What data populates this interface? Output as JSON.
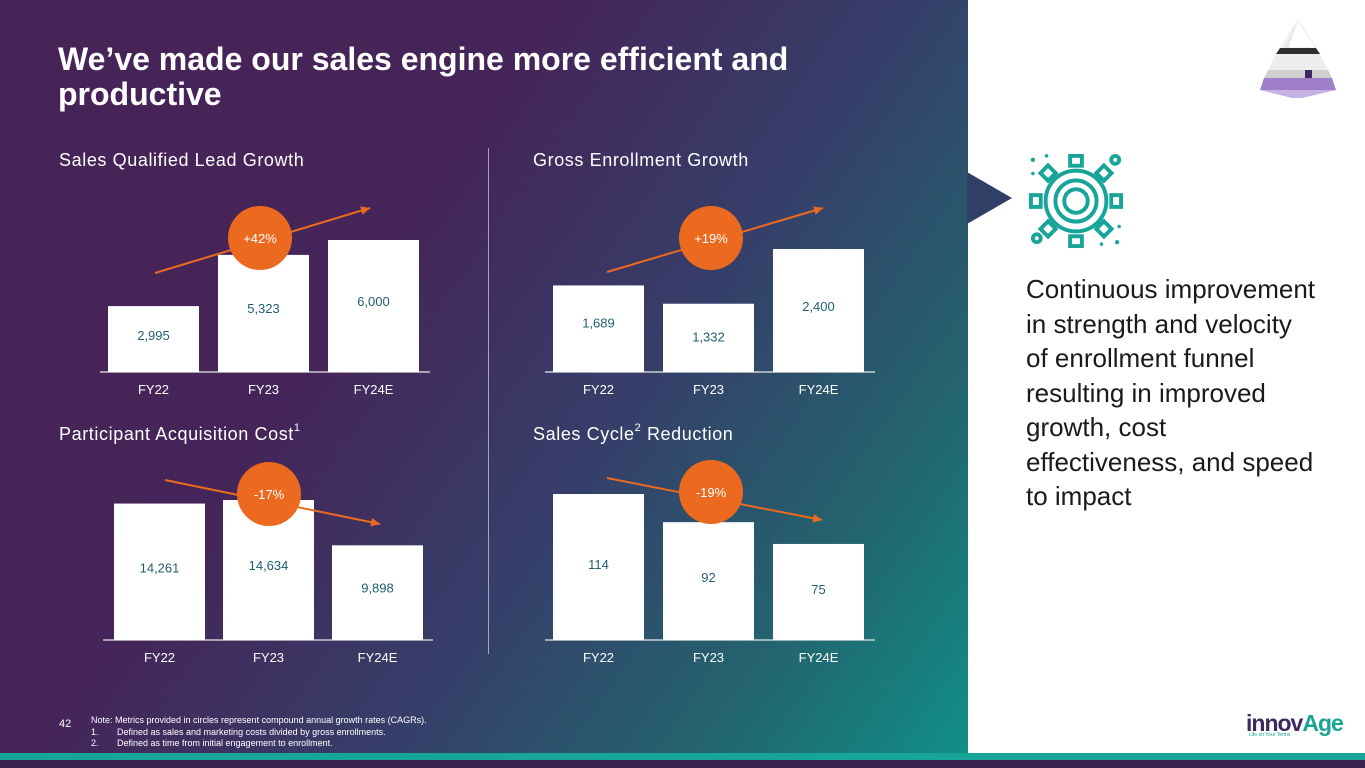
{
  "title": "We’ve made our sales engine more efficient and productive",
  "colors": {
    "badge": "#ec6a1f",
    "bar": "#ffffff",
    "bar_label": "#1f5f70",
    "accent_teal": "#17a59a",
    "brand_purple": "#3c2a5e"
  },
  "chart_data": [
    {
      "type": "bar",
      "title": "Sales Qualified Lead Growth",
      "categories": [
        "FY22",
        "FY23",
        "FY24E"
      ],
      "values": [
        2995,
        5323,
        6000
      ],
      "value_labels": [
        "2,995",
        "5,323",
        "6,000"
      ],
      "badge": "+42%",
      "trend": "up",
      "ylim": [
        0,
        6000
      ]
    },
    {
      "type": "bar",
      "title": "Gross Enrollment Growth",
      "categories": [
        "FY22",
        "FY23",
        "FY24E"
      ],
      "values": [
        1689,
        1332,
        2400
      ],
      "value_labels": [
        "1,689",
        "1,332",
        "2,400"
      ],
      "badge": "+19%",
      "trend": "up",
      "ylim": [
        0,
        2400
      ]
    },
    {
      "type": "bar",
      "title": "Participant Acquisition Cost",
      "title_superscript": "1",
      "categories": [
        "FY22",
        "FY23",
        "FY24E"
      ],
      "values": [
        14261,
        14634,
        9898
      ],
      "value_labels": [
        "14,261",
        "14,634",
        "9,898"
      ],
      "badge": "-17%",
      "trend": "down",
      "ylim": [
        0,
        14634
      ]
    },
    {
      "type": "bar",
      "title_prefix": "Sales Cycle",
      "title_superscript": "2",
      "title_suffix": " Reduction",
      "categories": [
        "FY22",
        "FY23",
        "FY24E"
      ],
      "values": [
        114,
        92,
        75
      ],
      "value_labels": [
        "114",
        "92",
        "75"
      ],
      "badge": "-19%",
      "trend": "down",
      "ylim": [
        0,
        114
      ]
    }
  ],
  "callout": {
    "icon": "gear-icon",
    "text": "Continuous improvement in strength and velocity of enrollment funnel resulting in improved growth, cost effectiveness, and speed to impact"
  },
  "footer": {
    "page_number": "42",
    "note": "Note: Metrics provided in circles represent compound annual growth rates (CAGRs).",
    "footnotes": [
      {
        "num": "1.",
        "text": "Defined as sales and marketing costs divided by gross enrollments."
      },
      {
        "num": "2.",
        "text": "Defined as time from initial engagement to enrollment."
      }
    ]
  },
  "brand": {
    "name_main": "innov",
    "name_accent": "Age",
    "tagline": "Life on Your Terms"
  }
}
